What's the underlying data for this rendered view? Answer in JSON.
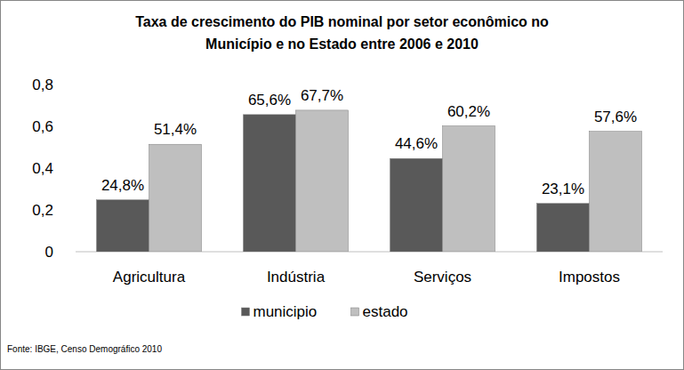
{
  "chart_data": {
    "type": "bar",
    "title": "Taxa de crescimento do PIB nominal por setor econômico no\nMunicípio e no Estado entre 2006 e 2010",
    "categories": [
      "Agricultura",
      "Indústria",
      "Serviços",
      "Impostos"
    ],
    "series": [
      {
        "name": "municipio",
        "color": "#595959",
        "values": [
          0.248,
          0.656,
          0.446,
          0.231
        ],
        "value_labels": [
          "24,8%",
          "65,6%",
          "44,6%",
          "23,1%"
        ]
      },
      {
        "name": "estado",
        "color": "#bfbfbf",
        "values": [
          0.514,
          0.677,
          0.602,
          0.576
        ],
        "value_labels": [
          "51,4%",
          "67,7%",
          "60,2%",
          "57,6%"
        ]
      }
    ],
    "ylim": [
      0,
      0.8
    ],
    "yticks": [
      0,
      {
        "value": 0.2,
        "label": "0,2"
      },
      {
        "value": 0.4,
        "label": "0,4"
      },
      {
        "value": 0.6,
        "label": "0,6"
      },
      {
        "value": 0.8,
        "label": "0,8"
      }
    ],
    "grid": false,
    "legend": "bottom",
    "data_labels": true,
    "source": "Fonte: IBGE, Censo Demográfico 2010"
  }
}
